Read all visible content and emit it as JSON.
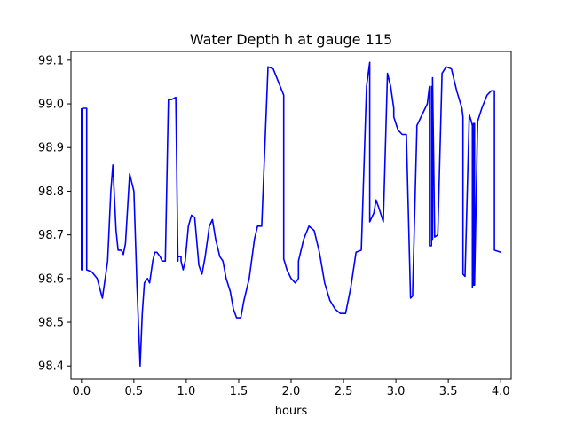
{
  "chart_data": {
    "type": "line",
    "title": "Water Depth h at gauge 115",
    "xlabel": "hours",
    "ylabel": "",
    "xlim": [
      -0.1,
      4.1
    ],
    "ylim": [
      98.37,
      99.12
    ],
    "x_ticks": [
      0.0,
      0.5,
      1.0,
      1.5,
      2.0,
      2.5,
      3.0,
      3.5,
      4.0
    ],
    "x_tick_labels": [
      "0.0",
      "0.5",
      "1.0",
      "1.5",
      "2.0",
      "2.5",
      "3.0",
      "3.5",
      "4.0"
    ],
    "y_ticks": [
      98.4,
      98.5,
      98.6,
      98.7,
      98.8,
      98.9,
      99.0,
      99.1
    ],
    "y_tick_labels": [
      "98.4",
      "98.5",
      "98.6",
      "98.7",
      "98.8",
      "98.9",
      "99.0",
      "99.1"
    ],
    "grid": false,
    "series": [
      {
        "color": "#0000ff",
        "x": [
          0.0,
          0.0,
          0.01,
          0.01,
          0.05,
          0.05,
          0.1,
          0.15,
          0.2,
          0.25,
          0.28,
          0.3,
          0.33,
          0.35,
          0.38,
          0.4,
          0.42,
          0.46,
          0.5,
          0.53,
          0.56,
          0.58,
          0.6,
          0.63,
          0.65,
          0.68,
          0.7,
          0.72,
          0.75,
          0.77,
          0.8,
          0.83,
          0.86,
          0.9,
          0.92,
          0.92,
          0.95,
          0.95,
          0.97,
          0.99,
          1.02,
          1.05,
          1.08,
          1.12,
          1.15,
          1.18,
          1.22,
          1.25,
          1.28,
          1.32,
          1.35,
          1.38,
          1.42,
          1.45,
          1.48,
          1.52,
          1.55,
          1.6,
          1.65,
          1.68,
          1.72,
          1.78,
          1.83,
          1.88,
          1.93,
          1.93,
          1.96,
          2.0,
          2.04,
          2.07,
          2.07,
          2.12,
          2.17,
          2.22,
          2.27,
          2.32,
          2.37,
          2.42,
          2.47,
          2.52,
          2.57,
          2.62,
          2.67,
          2.72,
          2.75,
          2.75,
          2.79,
          2.81,
          2.81,
          2.84,
          2.88,
          2.92,
          2.95,
          2.98,
          2.98,
          3.02,
          3.06,
          3.1,
          3.14,
          3.16,
          3.16,
          3.2,
          3.2,
          3.3,
          3.32,
          3.32,
          3.34,
          3.34,
          3.35,
          3.35,
          3.37,
          3.4,
          3.44,
          3.48,
          3.53,
          3.58,
          3.63,
          3.64,
          3.64,
          3.66,
          3.7,
          3.72,
          3.73,
          3.73,
          3.74,
          3.74,
          3.75,
          3.75,
          3.78,
          3.82,
          3.87,
          3.91,
          3.94,
          3.94,
          4.0
        ],
        "y": [
          98.99,
          98.62,
          98.62,
          98.99,
          98.99,
          98.62,
          98.615,
          98.6,
          98.555,
          98.64,
          98.8,
          98.86,
          98.71,
          98.665,
          98.665,
          98.655,
          98.68,
          98.84,
          98.8,
          98.58,
          98.4,
          98.52,
          98.59,
          98.6,
          98.59,
          98.64,
          98.66,
          98.66,
          98.65,
          98.64,
          98.64,
          99.01,
          99.01,
          99.015,
          98.64,
          98.65,
          98.65,
          98.64,
          98.62,
          98.64,
          98.72,
          98.745,
          98.74,
          98.63,
          98.61,
          98.65,
          98.72,
          98.735,
          98.69,
          98.65,
          98.64,
          98.6,
          98.57,
          98.53,
          98.51,
          98.51,
          98.55,
          98.6,
          98.69,
          98.72,
          98.72,
          99.085,
          99.08,
          99.05,
          99.02,
          98.645,
          98.62,
          98.6,
          98.59,
          98.6,
          98.64,
          98.69,
          98.72,
          98.71,
          98.66,
          98.59,
          98.55,
          98.53,
          98.52,
          98.52,
          98.58,
          98.66,
          98.665,
          99.04,
          99.095,
          98.73,
          98.75,
          98.78,
          98.78,
          98.76,
          98.73,
          99.07,
          99.04,
          98.99,
          98.97,
          98.94,
          98.93,
          98.93,
          98.555,
          98.56,
          98.57,
          98.94,
          98.95,
          99.0,
          99.04,
          98.675,
          98.675,
          99.04,
          98.69,
          99.06,
          98.695,
          98.7,
          99.07,
          99.085,
          99.08,
          99.03,
          98.99,
          98.97,
          98.61,
          98.605,
          98.975,
          98.96,
          98.95,
          98.58,
          98.955,
          98.585,
          98.955,
          98.585,
          98.96,
          98.99,
          99.02,
          99.03,
          99.03,
          98.665,
          98.66
        ]
      }
    ]
  }
}
